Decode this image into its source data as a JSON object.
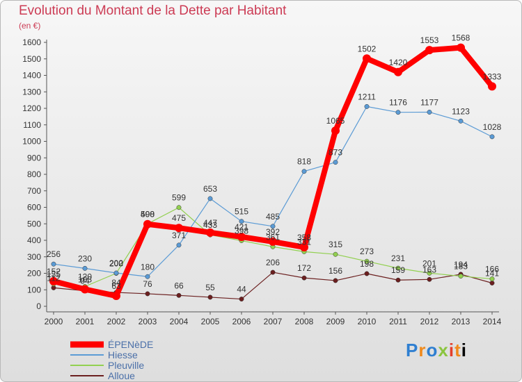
{
  "title": "Evolution du Montant de la Dette par Habitant",
  "subtitle": "(en €)",
  "logo": "Proxiti",
  "chart_data": {
    "type": "line",
    "x": [
      "2000",
      "2001",
      "2002",
      "2003",
      "2004",
      "2005",
      "2006",
      "2007",
      "2008",
      "2009",
      "2010",
      "2011",
      "2012",
      "2013",
      "2014"
    ],
    "ylim": [
      0,
      1600
    ],
    "yticks": [
      0,
      100,
      200,
      300,
      400,
      500,
      600,
      700,
      800,
      900,
      1000,
      1100,
      1200,
      1300,
      1400,
      1500,
      1600
    ],
    "grid": false,
    "legend_position": "bottom-left",
    "series": [
      {
        "name": "ÉPENèDE",
        "color": "#ff0000",
        "values": [
          152,
          103,
          63,
          498,
          475,
          447,
          421,
          392,
          358,
          1065,
          1502,
          1420,
          1553,
          1568,
          1333
        ]
      },
      {
        "name": "Hiesse",
        "color": "#5b9bd5",
        "values": [
          256,
          230,
          202,
          180,
          371,
          653,
          515,
          485,
          818,
          873,
          1211,
          1176,
          1177,
          1123,
          1028
        ]
      },
      {
        "name": "Pleuville",
        "color": "#92d050",
        "values": [
          135,
          120,
          200,
          500,
          599,
          433,
          398,
          361,
          331,
          315,
          273,
          231,
          201,
          183,
          166
        ]
      },
      {
        "name": "Alloue",
        "color": "#6b1f1f",
        "values": [
          112,
          94,
          84,
          76,
          66,
          55,
          44,
          206,
          172,
          156,
          198,
          159,
          163,
          194,
          141
        ]
      }
    ]
  }
}
